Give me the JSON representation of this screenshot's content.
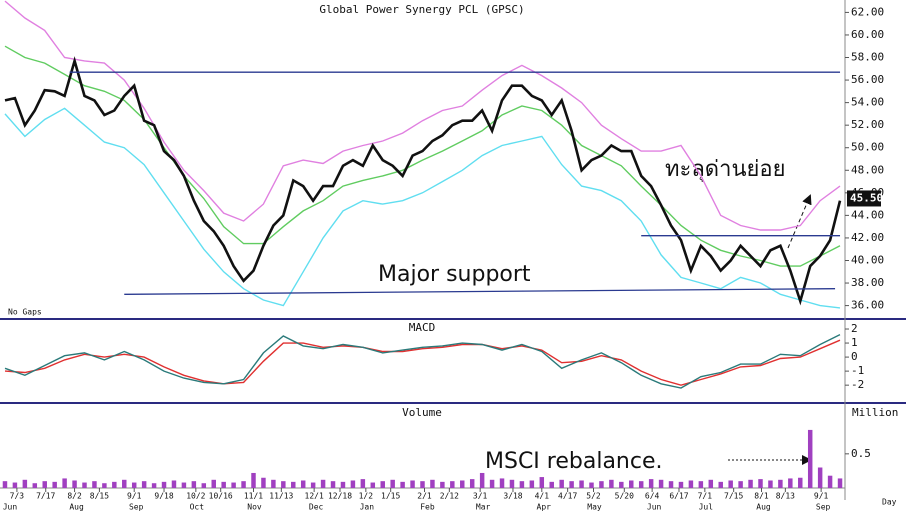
{
  "chart_data": [
    {
      "type": "line",
      "title": "Global Power Synergy PCL (GPSC)",
      "note": "No Gaps",
      "xlim": [
        -0.5,
        84.5
      ],
      "ylim": [
        34.9,
        63.1
      ],
      "yticks": [
        {
          "value": 36,
          "label": "36.00"
        },
        {
          "value": 38,
          "label": "38.00"
        },
        {
          "value": 40,
          "label": "40.00"
        },
        {
          "value": 42,
          "label": "42.00"
        },
        {
          "value": 44,
          "label": "44.00"
        },
        {
          "value": 46,
          "label": "46.00"
        },
        {
          "value": 48,
          "label": "48.00"
        },
        {
          "value": 50,
          "label": "50.00"
        },
        {
          "value": 52,
          "label": "52.00"
        },
        {
          "value": 54,
          "label": "54.00"
        },
        {
          "value": 56,
          "label": "56.00"
        },
        {
          "value": 58,
          "label": "58.00"
        },
        {
          "value": 60,
          "label": "60.00"
        },
        {
          "value": 62,
          "label": "62.00"
        }
      ],
      "last_price": {
        "value": 45.5,
        "label": "45.50"
      },
      "x": [
        0,
        1,
        2,
        3,
        4,
        5,
        6,
        7,
        8,
        9,
        10,
        11,
        12,
        13,
        14,
        15,
        16,
        17,
        18,
        19,
        20,
        21,
        22,
        23,
        24,
        25,
        26,
        27,
        28,
        29,
        30,
        31,
        32,
        33,
        34,
        35,
        36,
        37,
        38,
        39,
        40,
        41,
        42,
        43,
        44,
        45,
        46,
        47,
        48,
        49,
        50,
        51,
        52,
        53,
        54,
        55,
        56,
        57,
        58,
        59,
        60,
        61,
        62,
        63,
        64,
        65,
        66,
        67,
        68,
        69,
        70,
        71,
        72,
        73,
        74,
        75,
        76,
        77,
        78,
        79,
        80,
        81,
        82,
        83,
        84
      ],
      "series": [
        {
          "name": "Close",
          "color": "#111111",
          "values": [
            54.2,
            54.4,
            52,
            53.3,
            55.1,
            55,
            54.6,
            57.7,
            54.6,
            54.2,
            52.9,
            53.3,
            54.6,
            55.5,
            52.4,
            52,
            49.7,
            48.9,
            47.5,
            45.3,
            43.5,
            42.6,
            41.3,
            39.5,
            38.2,
            39.1,
            41.3,
            43.1,
            44,
            47.1,
            46.6,
            45.3,
            46.6,
            46.6,
            48.4,
            48.9,
            48.4,
            50.2,
            48.9,
            48.4,
            47.5,
            49.3,
            49.7,
            50.6,
            51.1,
            52,
            52.4,
            52.4,
            53.3,
            51.5,
            54.2,
            55.5,
            55.5,
            54.6,
            54.2,
            52.9,
            54.2,
            51.5,
            48,
            48.9,
            49.3,
            50.2,
            49.7,
            49.7,
            47.5,
            46.6,
            44.9,
            43.1,
            41.8,
            39.1,
            41.3,
            40.4,
            39.1,
            40,
            41.3,
            40.4,
            39.5,
            40.9,
            41.3,
            39.1,
            36.4,
            39.5,
            40.4,
            41.8,
            45.3
          ]
        },
        {
          "name": "Upper Band",
          "color": "#e080e0",
          "x": [
            0,
            2,
            4,
            6,
            8,
            10,
            12,
            14,
            16,
            18,
            20,
            22,
            24,
            26,
            28,
            30,
            32,
            34,
            36,
            38,
            40,
            42,
            44,
            46,
            48,
            50,
            52,
            54,
            56,
            58,
            60,
            62,
            64,
            66,
            68,
            70,
            72,
            74,
            76,
            78,
            80,
            82,
            84
          ],
          "values": [
            63,
            61.5,
            60.4,
            58,
            57.7,
            57.5,
            56,
            53.5,
            50.5,
            48,
            46.2,
            44.2,
            43.5,
            45,
            48.4,
            48.9,
            48.6,
            49.7,
            50.2,
            50.6,
            51.3,
            52.4,
            53.3,
            53.7,
            55.1,
            56.4,
            57.3,
            56.4,
            55.3,
            54,
            52,
            50.8,
            49.7,
            49.7,
            50.2,
            47.5,
            44,
            43.1,
            42.7,
            42.7,
            43.1,
            45.3,
            46.6
          ]
        },
        {
          "name": "Moving Average",
          "color": "#60cc60",
          "x": [
            0,
            2,
            4,
            6,
            8,
            10,
            12,
            14,
            16,
            18,
            20,
            22,
            24,
            26,
            28,
            30,
            32,
            34,
            36,
            38,
            40,
            42,
            44,
            46,
            48,
            50,
            52,
            54,
            56,
            58,
            60,
            62,
            64,
            66,
            68,
            70,
            72,
            74,
            76,
            78,
            80,
            82,
            84
          ],
          "values": [
            59,
            58,
            57.5,
            56.5,
            55.5,
            55,
            54.2,
            52.5,
            50,
            47.5,
            45.5,
            43,
            41.5,
            41.5,
            43,
            44.4,
            45.3,
            46.6,
            47.1,
            47.5,
            48,
            48.9,
            49.7,
            50.6,
            51.5,
            52.9,
            53.7,
            53.3,
            52,
            50.2,
            49.3,
            48.4,
            46.6,
            44.9,
            43.1,
            41.8,
            40.9,
            40.4,
            40,
            39.5,
            39.5,
            40.4,
            41.3
          ]
        },
        {
          "name": "Lower Band",
          "color": "#60def0",
          "x": [
            0,
            2,
            4,
            6,
            8,
            10,
            12,
            14,
            16,
            18,
            20,
            22,
            24,
            26,
            28,
            30,
            32,
            34,
            36,
            38,
            40,
            42,
            44,
            46,
            48,
            50,
            52,
            54,
            56,
            58,
            60,
            62,
            64,
            66,
            68,
            70,
            72,
            74,
            76,
            78,
            80,
            82,
            84
          ],
          "values": [
            53,
            51,
            52.5,
            53.5,
            52,
            50.5,
            50,
            48.5,
            46,
            43.5,
            41,
            39,
            37.5,
            36.5,
            36,
            39,
            42,
            44.4,
            45.3,
            45,
            45.3,
            46,
            47,
            48,
            49.3,
            50.2,
            50.6,
            51,
            48.5,
            46.6,
            46.2,
            45.3,
            43.5,
            40.5,
            38.5,
            38,
            37.5,
            38.5,
            38,
            37,
            36.5,
            36,
            35.8
          ]
        }
      ],
      "trendlines": [
        {
          "x": [
            6.5,
            84
          ],
          "y": [
            56.7,
            56.7
          ]
        },
        {
          "x": [
            12,
            83.5
          ],
          "y": [
            37,
            37.5
          ]
        },
        {
          "x": [
            64,
            84
          ],
          "y": [
            42.2,
            42.2
          ]
        }
      ],
      "annotations": [
        "Major support",
        "ทะลุด่านย่อย"
      ]
    },
    {
      "type": "line",
      "title": "MACD",
      "xlim": [
        -0.5,
        84.5
      ],
      "ylim": [
        -3.2,
        2.5
      ],
      "yticks": [
        -2,
        -1,
        0,
        1,
        2
      ],
      "x": [
        0,
        2,
        4,
        6,
        8,
        10,
        12,
        14,
        16,
        18,
        20,
        22,
        24,
        26,
        28,
        30,
        32,
        34,
        36,
        38,
        40,
        42,
        44,
        46,
        48,
        50,
        52,
        54,
        56,
        58,
        60,
        62,
        64,
        66,
        68,
        70,
        72,
        74,
        76,
        78,
        80,
        82,
        84
      ],
      "series": [
        {
          "name": "MACD",
          "color": "#2a7a7a",
          "values": [
            -0.8,
            -1.3,
            -0.6,
            0.1,
            0.3,
            -0.2,
            0.4,
            -0.2,
            -1,
            -1.5,
            -1.8,
            -1.9,
            -1.6,
            0.3,
            1.5,
            0.8,
            0.6,
            0.9,
            0.7,
            0.3,
            0.5,
            0.7,
            0.8,
            1,
            0.9,
            0.5,
            0.9,
            0.4,
            -0.8,
            -0.2,
            0.3,
            -0.4,
            -1.3,
            -1.9,
            -2.2,
            -1.4,
            -1.1,
            -0.5,
            -0.5,
            0.2,
            0.1,
            0.9,
            1.6
          ]
        },
        {
          "name": "Signal",
          "color": "#e03030",
          "values": [
            -1,
            -1.1,
            -0.8,
            -0.2,
            0.2,
            0,
            0.2,
            0,
            -0.7,
            -1.3,
            -1.7,
            -1.9,
            -1.8,
            -0.3,
            1,
            1,
            0.7,
            0.8,
            0.7,
            0.4,
            0.4,
            0.6,
            0.7,
            0.9,
            0.9,
            0.6,
            0.8,
            0.5,
            -0.4,
            -0.3,
            0.1,
            -0.2,
            -1,
            -1.6,
            -2,
            -1.6,
            -1.2,
            -0.7,
            -0.6,
            -0.1,
            0,
            0.6,
            1.2
          ]
        }
      ]
    },
    {
      "type": "bar",
      "title": "Volume",
      "y_unit": "Million",
      "x_unit": "Day",
      "xlim": [
        -0.5,
        84.5
      ],
      "ylim": [
        0,
        1.2
      ],
      "yticks": [
        0.5
      ],
      "color": "#a040c0",
      "x": [
        0,
        1,
        2,
        3,
        4,
        5,
        6,
        7,
        8,
        9,
        10,
        11,
        12,
        13,
        14,
        15,
        16,
        17,
        18,
        19,
        20,
        21,
        22,
        23,
        24,
        25,
        26,
        27,
        28,
        29,
        30,
        31,
        32,
        33,
        34,
        35,
        36,
        37,
        38,
        39,
        40,
        41,
        42,
        43,
        44,
        45,
        46,
        47,
        48,
        49,
        50,
        51,
        52,
        53,
        54,
        55,
        56,
        57,
        58,
        59,
        60,
        61,
        62,
        63,
        64,
        65,
        66,
        67,
        68,
        69,
        70,
        71,
        72,
        73,
        74,
        75,
        76,
        77,
        78,
        79,
        80,
        81,
        82,
        83,
        84
      ],
      "values": [
        0.1,
        0.08,
        0.12,
        0.07,
        0.1,
        0.09,
        0.14,
        0.11,
        0.08,
        0.1,
        0.07,
        0.09,
        0.12,
        0.08,
        0.1,
        0.07,
        0.09,
        0.11,
        0.08,
        0.1,
        0.07,
        0.12,
        0.09,
        0.08,
        0.1,
        0.22,
        0.15,
        0.12,
        0.1,
        0.09,
        0.11,
        0.08,
        0.12,
        0.1,
        0.09,
        0.11,
        0.13,
        0.08,
        0.1,
        0.12,
        0.09,
        0.11,
        0.1,
        0.12,
        0.09,
        0.1,
        0.11,
        0.13,
        0.22,
        0.12,
        0.14,
        0.12,
        0.1,
        0.11,
        0.16,
        0.09,
        0.12,
        0.1,
        0.11,
        0.08,
        0.1,
        0.12,
        0.09,
        0.11,
        0.1,
        0.13,
        0.12,
        0.1,
        0.09,
        0.11,
        0.1,
        0.12,
        0.09,
        0.11,
        0.1,
        0.12,
        0.13,
        0.11,
        0.12,
        0.14,
        0.15,
        0.85,
        0.3,
        0.18,
        0.14
      ],
      "xticks": [
        {
          "value": 1.2,
          "label": "7/3"
        },
        {
          "value": 4.1,
          "label": "7/17"
        },
        {
          "value": 7,
          "label": "8/2"
        },
        {
          "value": 9.5,
          "label": "8/15"
        },
        {
          "value": 13,
          "label": "9/1"
        },
        {
          "value": 16,
          "label": "9/18"
        },
        {
          "value": 19.2,
          "label": "10/2"
        },
        {
          "value": 21.7,
          "label": "10/16"
        },
        {
          "value": 25,
          "label": "11/1"
        },
        {
          "value": 27.8,
          "label": "11/13"
        },
        {
          "value": 31.1,
          "label": "12/1"
        },
        {
          "value": 33.7,
          "label": "12/18"
        },
        {
          "value": 36.3,
          "label": "1/2"
        },
        {
          "value": 38.8,
          "label": "1/15"
        },
        {
          "value": 42.2,
          "label": "2/1"
        },
        {
          "value": 44.7,
          "label": "2/12"
        },
        {
          "value": 47.8,
          "label": "3/1"
        },
        {
          "value": 51.1,
          "label": "3/18"
        },
        {
          "value": 54,
          "label": "4/1"
        },
        {
          "value": 56.6,
          "label": "4/17"
        },
        {
          "value": 59.2,
          "label": "5/2"
        },
        {
          "value": 62.3,
          "label": "5/20"
        },
        {
          "value": 65.1,
          "label": "6/4"
        },
        {
          "value": 67.8,
          "label": "6/17"
        },
        {
          "value": 70.4,
          "label": "7/1"
        },
        {
          "value": 73.3,
          "label": "7/15"
        },
        {
          "value": 76.1,
          "label": "8/1"
        },
        {
          "value": 78.5,
          "label": "8/13"
        },
        {
          "value": 82.1,
          "label": "9/1"
        }
      ],
      "month_ticks": [
        {
          "value": 0.5,
          "label": "Jun"
        },
        {
          "value": 7.2,
          "label": "Aug"
        },
        {
          "value": 13.2,
          "label": "Sep"
        },
        {
          "value": 19.3,
          "label": "Oct"
        },
        {
          "value": 25.1,
          "label": "Nov"
        },
        {
          "value": 31.3,
          "label": "Dec"
        },
        {
          "value": 36.4,
          "label": "Jan"
        },
        {
          "value": 42.5,
          "label": "Feb"
        },
        {
          "value": 48.1,
          "label": "Mar"
        },
        {
          "value": 54.2,
          "label": "Apr"
        },
        {
          "value": 59.3,
          "label": "May"
        },
        {
          "value": 65.3,
          "label": "Jun"
        },
        {
          "value": 70.5,
          "label": "Jul"
        },
        {
          "value": 76.3,
          "label": "Aug"
        },
        {
          "value": 82.3,
          "label": "Sep"
        }
      ],
      "annotations": [
        "MSCI rebalance."
      ]
    }
  ]
}
